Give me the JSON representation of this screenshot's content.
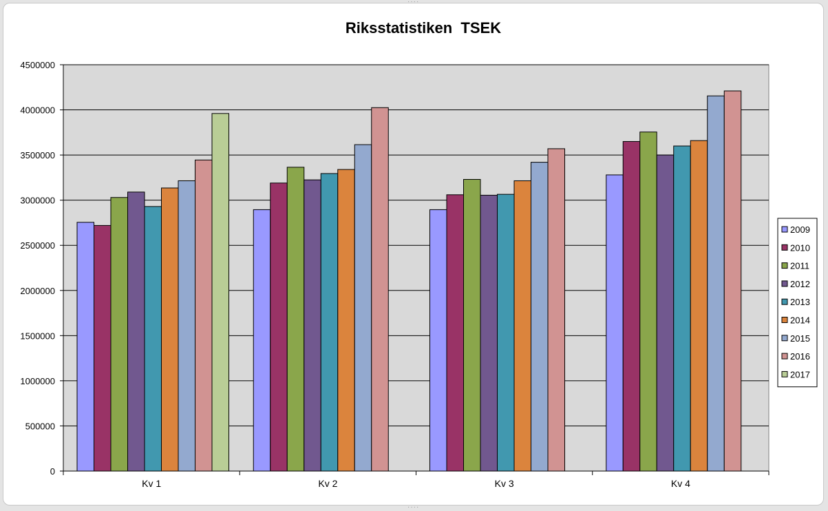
{
  "chart_data": {
    "type": "bar",
    "title": "Riksstatistiken  TSEK",
    "xlabel": "",
    "ylabel": "",
    "categories": [
      "Kv 1",
      "Kv 2",
      "Kv 3",
      "Kv 4"
    ],
    "ylim": [
      0,
      4500000
    ],
    "yticks": [
      0,
      500000,
      1000000,
      1500000,
      2000000,
      2500000,
      3000000,
      3500000,
      4000000,
      4500000
    ],
    "grid": true,
    "legend_position": "right",
    "plot_background": "#d9d9d9",
    "series": [
      {
        "name": "2009",
        "color": "#9999ff",
        "values": [
          2755000,
          2895000,
          2895000,
          3280000
        ]
      },
      {
        "name": "2010",
        "color": "#993366",
        "values": [
          2720000,
          3190000,
          3060000,
          3650000
        ]
      },
      {
        "name": "2011",
        "color": "#8aa64b",
        "values": [
          3030000,
          3365000,
          3230000,
          3755000
        ]
      },
      {
        "name": "2012",
        "color": "#71588f",
        "values": [
          3090000,
          3225000,
          3055000,
          3500000
        ]
      },
      {
        "name": "2013",
        "color": "#4198af",
        "values": [
          2930000,
          3295000,
          3065000,
          3600000
        ]
      },
      {
        "name": "2014",
        "color": "#db843d",
        "values": [
          3135000,
          3340000,
          3215000,
          3660000
        ]
      },
      {
        "name": "2015",
        "color": "#93a9cf",
        "values": [
          3215000,
          3615000,
          3420000,
          4155000
        ]
      },
      {
        "name": "2016",
        "color": "#d19392",
        "values": [
          3445000,
          4025000,
          3570000,
          4210000
        ]
      },
      {
        "name": "2017",
        "color": "#b9cd96",
        "values": [
          3960000,
          null,
          null,
          null
        ]
      }
    ]
  }
}
